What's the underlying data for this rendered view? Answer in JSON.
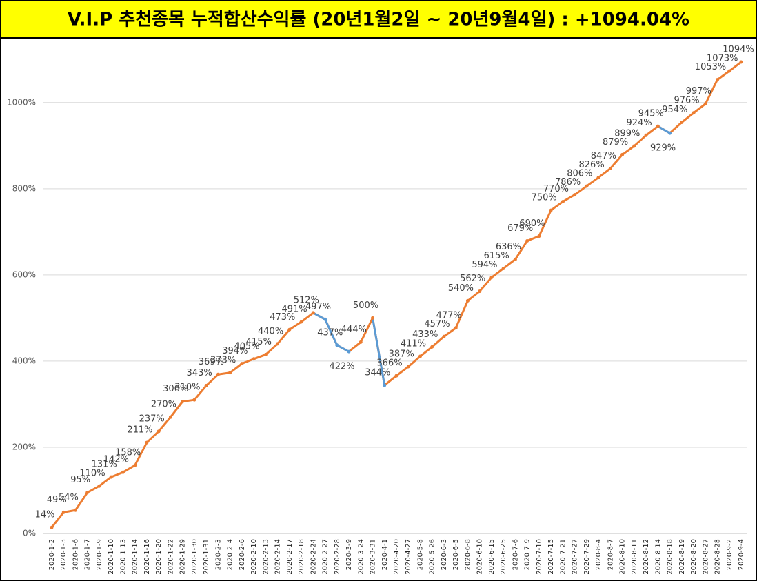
{
  "chart_data": {
    "type": "line",
    "title": "V.I.P 추천종목 누적합산수익률 (20년1월2일 ~ 20년9월4일) : +1094.04%",
    "categories": [
      "2020-1-2",
      "2020-1-3",
      "2020-1-6",
      "2020-1-7",
      "2020-1-9",
      "2020-1-10",
      "2020-1-13",
      "2020-1-14",
      "2020-1-16",
      "2020-1-20",
      "2020-1-22",
      "2020-1-29",
      "2020-1-30",
      "2020-1-31",
      "2020-2-3",
      "2020-2-4",
      "2020-2-6",
      "2020-2-10",
      "2020-2-13",
      "2020-2-14",
      "2020-2-17",
      "2020-2-18",
      "2020-2-24",
      "2020-2-27",
      "2020-2-28",
      "2020-3-9",
      "2020-3-24",
      "2020-3-31",
      "2020-4-1",
      "2020-4-20",
      "2020-4-27",
      "2020-5-8",
      "2020-5-26",
      "2020-6-3",
      "2020-6-5",
      "2020-6-8",
      "2020-6-10",
      "2020-6-15",
      "2020-6-25",
      "2020-7-6",
      "2020-7-9",
      "2020-7-10",
      "2020-7-15",
      "2020-7-21",
      "2020-7-27",
      "2020-7-29",
      "2020-8-4",
      "2020-8-7",
      "2020-8-10",
      "2020-8-11",
      "2020-8-12",
      "2020-8-14",
      "2020-8-18",
      "2020-8-19",
      "2020-8-20",
      "2020-8-27",
      "2020-8-28",
      "2020-9-2",
      "2020-9-4"
    ],
    "series": [
      {
        "color": "#ed7d31",
        "down_color": "#5b9bd5",
        "values": [
          14,
          49,
          54,
          95,
          110,
          131,
          142,
          158,
          211,
          237,
          270,
          306,
          310,
          343,
          369,
          373,
          394,
          405,
          415,
          440,
          473,
          491,
          512,
          497,
          437,
          422,
          444,
          500,
          344,
          366,
          387,
          411,
          433,
          457,
          477,
          540,
          562,
          594,
          615,
          636,
          679,
          690,
          750,
          770,
          786,
          806,
          826,
          847,
          879,
          899,
          924,
          945,
          929,
          954,
          976,
          997,
          1053,
          1073,
          1094
        ],
        "value_labels": [
          "14%",
          "49%",
          "54%",
          "95%",
          "110%",
          "131%",
          "142%",
          "158%",
          "211%",
          "237%",
          "270%",
          "306%",
          "310%",
          "343%",
          "369%",
          "373%",
          "394%",
          "405%",
          "415%",
          "440%",
          "473%",
          "491%",
          "512%",
          "497%",
          "437%",
          "422%",
          "444%",
          "500%",
          "344%",
          "366%",
          "387%",
          "411%",
          "433%",
          "457%",
          "477%",
          "540%",
          "562%",
          "594%",
          "615%",
          "636%",
          "679%",
          "690%",
          "750%",
          "770%",
          "786%",
          "806%",
          "826%",
          "847%",
          "879%",
          "899%",
          "924%",
          "945%",
          "929%",
          "954%",
          "976%",
          "997%",
          "1053%",
          "1073%",
          "1094%"
        ]
      }
    ],
    "ylim": [
      0,
      1150
    ],
    "yticks": [
      {
        "value": 0,
        "label": "0%"
      },
      {
        "value": 200,
        "label": "200%"
      },
      {
        "value": 400,
        "label": "400%"
      },
      {
        "value": 600,
        "label": "600%"
      },
      {
        "value": 800,
        "label": "800%"
      },
      {
        "value": 1000,
        "label": "1000%"
      }
    ],
    "grid": true
  }
}
